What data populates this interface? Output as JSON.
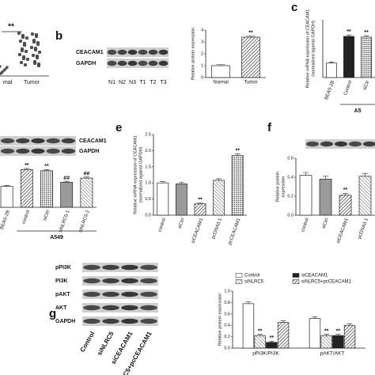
{
  "panel_labels": [
    "b",
    "c",
    "e",
    "f",
    "g"
  ],
  "panel_a": {
    "annotation": "**",
    "categories": [
      "mal",
      "Tumor"
    ]
  },
  "blots": [
    {
      "rows": [
        "CEACAM1",
        "GAPDH"
      ],
      "lanes": [
        "N1",
        "N2",
        "N3",
        "T1",
        "T2",
        "T3"
      ]
    },
    {
      "rows": [
        "CEACAM1",
        "GAPDH"
      ],
      "lanes": []
    },
    {
      "rows": [],
      "lanes": []
    },
    {
      "rows": [
        "pPI3K",
        "PI3K",
        "pAKT",
        "AKT",
        "GAPDH"
      ],
      "lanes": [
        "Control",
        "siNLRC5",
        "siCEACAM1",
        "siNLRC5+pcCEACAM1"
      ]
    }
  ],
  "chart_data": [
    {
      "type": "bar",
      "y_label": [
        "Relative protein expression"
      ],
      "categories": [
        "Normal",
        "Tumor"
      ],
      "values": [
        1.0,
        3.4
      ],
      "errors": [
        0.1,
        0.1
      ],
      "annotations": [
        null,
        "**"
      ],
      "patterns": [
        "white",
        "hatch"
      ],
      "ylim": [
        0,
        4
      ],
      "yticks": [
        0,
        1,
        2,
        3,
        4
      ]
    },
    {
      "type": "bar",
      "y_label": [
        "Relative mRNA expression of CEACAM1",
        "(normalized against GAPDH)"
      ],
      "categories": [
        "BEAS-2B",
        "Control",
        "siCtr"
      ],
      "values": [
        1.0,
        2.85,
        2.8
      ],
      "errors": [
        0.08,
        0.1,
        0.1
      ],
      "annotations": [
        null,
        "**",
        "**"
      ],
      "patterns": [
        "white",
        "black",
        "dots"
      ],
      "ylim": [
        0,
        4
      ],
      "group_label": "A5"
    },
    {
      "type": "bar",
      "y_label": [],
      "categories": [
        "BEAS-2B",
        "control",
        "siCtrl",
        "siNLRC5-1",
        "siNLRC5-2"
      ],
      "values": [
        1.0,
        1.8,
        1.75,
        1.2,
        1.4
      ],
      "errors": [
        0.05,
        0.06,
        0.06,
        0.05,
        0.05
      ],
      "annotations": [
        null,
        "**",
        "**",
        "##",
        "##"
      ],
      "patterns": [
        "white",
        "hatch",
        "dots",
        "gray",
        "hatch2"
      ],
      "ylim": [
        0,
        2.2
      ],
      "group_label": "A549"
    },
    {
      "type": "bar",
      "y_label": [
        "Relative mRNA expression of CEACAM1",
        "(normalized against GAPDH)"
      ],
      "categories": [
        "control",
        "siCtrl",
        "siCEACAM1",
        "pcDNA3.1",
        "pcCEACAM1"
      ],
      "values": [
        1.0,
        0.97,
        0.35,
        1.08,
        1.85
      ],
      "errors": [
        0.04,
        0.05,
        0.03,
        0.05,
        0.05
      ],
      "annotations": [
        null,
        null,
        "**",
        null,
        "**"
      ],
      "patterns": [
        "white",
        "gray",
        "hatch",
        "hatch2",
        "dots"
      ],
      "ylim": [
        0,
        2.5
      ],
      "yticks": [
        {
          "value": 0,
          "label": "0.0"
        },
        {
          "value": 0.5,
          "label": "0.5"
        },
        {
          "value": 1,
          "label": "1.0"
        },
        {
          "value": 1.5,
          "label": "1.5"
        },
        {
          "value": 2,
          "label": "2.0"
        },
        {
          "value": 2.5,
          "label": "2.5"
        }
      ]
    },
    {
      "type": "bar",
      "y_label": [
        "Relative protein",
        "expression"
      ],
      "categories": [
        "control",
        "siCtrl",
        "siCEACAM1",
        "pcDNA3.1"
      ],
      "values": [
        0.42,
        0.38,
        0.21,
        0.41
      ],
      "errors": [
        0.03,
        0.03,
        0.02,
        0.03
      ],
      "annotations": [
        null,
        null,
        "**",
        null
      ],
      "patterns": [
        "white",
        "gray",
        "hatch",
        "hatch2"
      ],
      "ylim": [
        0,
        0.6
      ],
      "yticks": [
        {
          "value": 0,
          "label": "0.0"
        },
        {
          "value": 0.2,
          "label": "0.2"
        },
        {
          "value": 0.4,
          "label": "0.4"
        },
        {
          "value": 0.6,
          "label": "0.6"
        }
      ]
    },
    {
      "type": "grouped_bar",
      "y_label": [
        "Relative protein expression"
      ],
      "categories": [
        "pPI3K/PI3K",
        "pAKT/AKT"
      ],
      "series": [
        {
          "name": "Control",
          "pattern": "white",
          "values": [
            0.78,
            0.52
          ],
          "errors": [
            0.03,
            0.03
          ],
          "annotations": [
            null,
            null
          ]
        },
        {
          "name": "siNLRC5",
          "pattern": "hatch2",
          "values": [
            0.22,
            0.22
          ],
          "errors": [
            0.02,
            0.02
          ],
          "annotations": [
            "**",
            "**"
          ]
        },
        {
          "name": "siCEACAM1",
          "pattern": "black",
          "values": [
            0.1,
            0.22
          ],
          "errors": [
            0.02,
            0.02
          ],
          "annotations": [
            "**",
            "**"
          ]
        },
        {
          "name": "siNLRC5+pcCEACAM1",
          "pattern": "hatch",
          "values": [
            0.45,
            0.4
          ],
          "errors": [
            0.03,
            0.03
          ],
          "annotations": [
            null,
            null
          ]
        }
      ],
      "ylim": [
        0,
        1
      ],
      "yticks": [
        {
          "value": 0,
          "label": "0.0"
        },
        {
          "value": 0.2,
          "label": "0.2"
        },
        {
          "value": 0.4,
          "label": "0.4"
        },
        {
          "value": 0.6,
          "label": "0.6"
        },
        {
          "value": 0.8,
          "label": "0.8"
        },
        {
          "value": 1,
          "label": "1.0"
        }
      ]
    }
  ]
}
